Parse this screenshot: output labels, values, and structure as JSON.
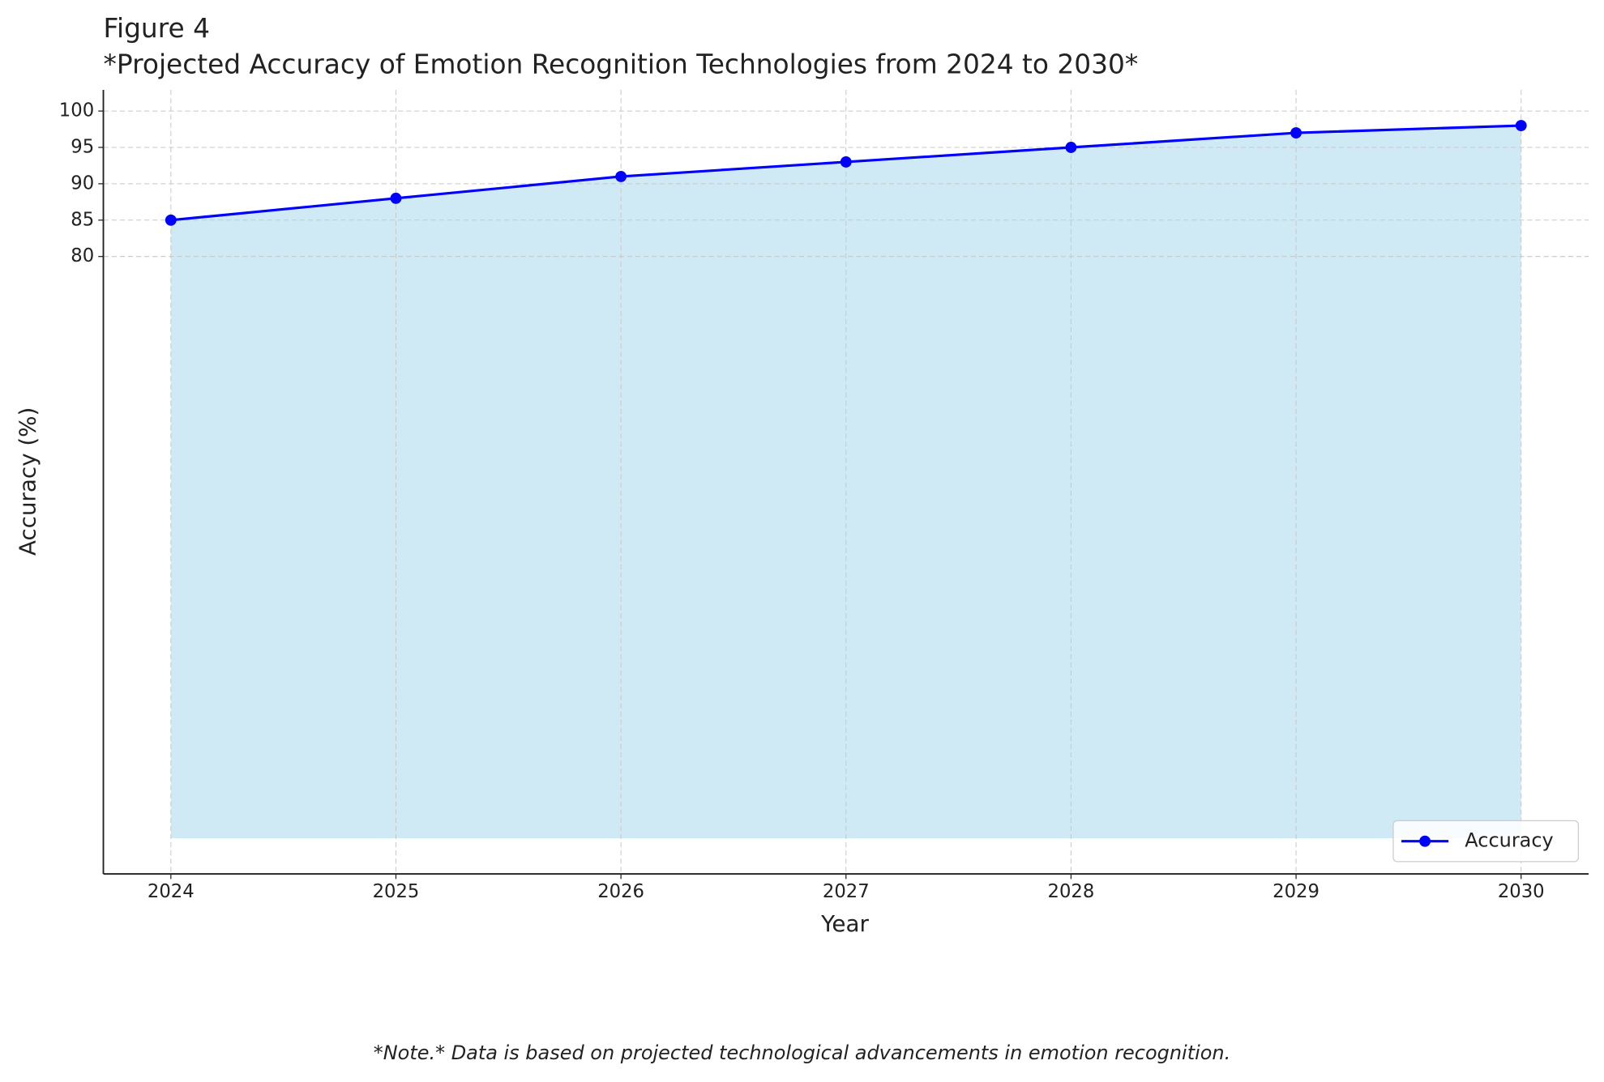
{
  "chart_data": {
    "type": "line",
    "title": "Figure 4",
    "subtitle": "*Projected Accuracy of Emotion Recognition Technologies from 2024 to 2030*",
    "x_label": "Year",
    "y_label": "Accuracy (%)",
    "note": "*Note.* Data is based on projected technological advancements in emotion recognition.",
    "x": [
      2024,
      2025,
      2026,
      2027,
      2028,
      2029,
      2030
    ],
    "series": [
      {
        "name": "Accuracy",
        "color": "#0000ff",
        "fill_color": "#d0eaf5",
        "values": [
          85,
          88,
          91,
          93,
          95,
          97,
          98
        ]
      }
    ],
    "xlim": [
      2023.7,
      2030.3
    ],
    "xticks": [
      2024,
      2025,
      2026,
      2027,
      2028,
      2029,
      2030
    ],
    "ylim": [
      -4.9,
      102.9
    ],
    "yticks": [
      80,
      85,
      90,
      95,
      100
    ],
    "grid": true,
    "legend": "lower right"
  }
}
